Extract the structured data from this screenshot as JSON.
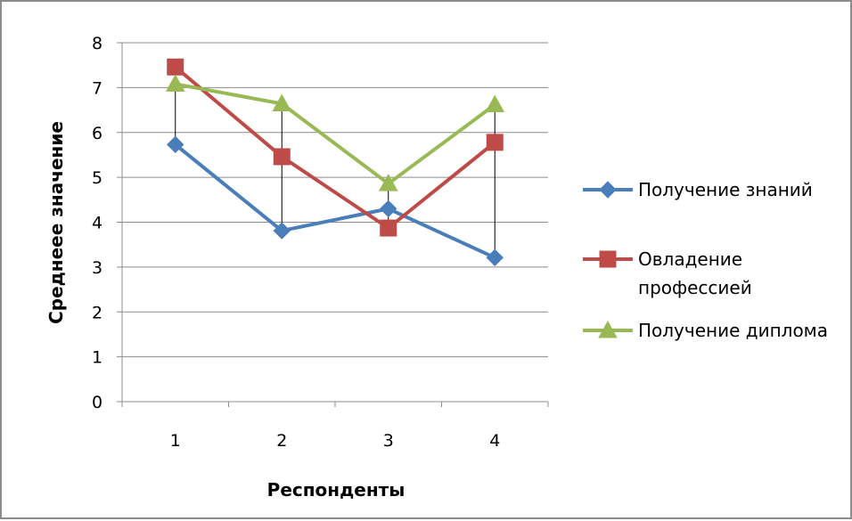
{
  "chart_data": {
    "type": "line",
    "title": "",
    "xlabel": "Респонденты",
    "ylabel": "Среднеее значение",
    "categories": [
      "1",
      "2",
      "3",
      "4"
    ],
    "ylim": [
      0,
      8
    ],
    "yticks": [
      "0",
      "1",
      "2",
      "3",
      "4",
      "5",
      "6",
      "7",
      "8"
    ],
    "grid": "horizontal",
    "legend_position": "right",
    "high_low_lines": true,
    "series": [
      {
        "name": "Получение знаний",
        "values": [
          5.73,
          3.81,
          4.3,
          3.21
        ],
        "color": "#4a7ebb",
        "marker": "diamond"
      },
      {
        "name": "Овладение профессией",
        "name_lines": [
          "Овладение",
          "профессией"
        ],
        "values": [
          7.46,
          5.46,
          3.87,
          5.78
        ],
        "color": "#be4b48",
        "marker": "square"
      },
      {
        "name": "Получение диплома",
        "values": [
          7.08,
          6.64,
          4.86,
          6.62
        ],
        "color": "#98b954",
        "marker": "triangle"
      }
    ]
  }
}
